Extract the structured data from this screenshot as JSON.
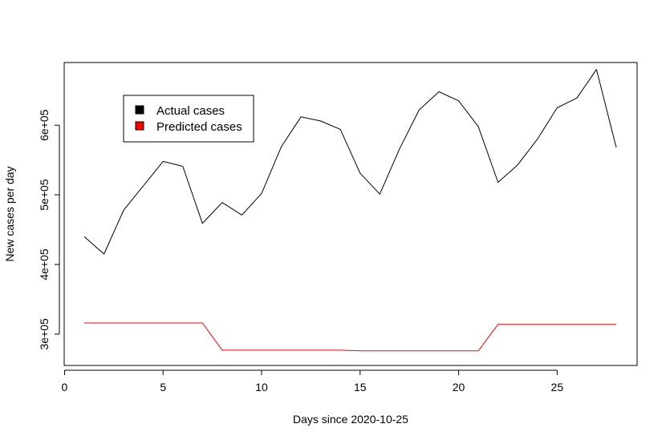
{
  "chart_data": {
    "type": "line",
    "title": "",
    "xlabel": "Days since 2020-10-25",
    "ylabel": "New cases per day",
    "xlim": [
      0,
      29
    ],
    "ylim": [
      255000,
      690000
    ],
    "x_ticks": [
      0,
      5,
      10,
      15,
      20,
      25
    ],
    "x_tick_labels": [
      "0",
      "5",
      "10",
      "15",
      "20",
      "25"
    ],
    "y_ticks": [
      300000,
      400000,
      500000,
      600000
    ],
    "y_tick_labels": [
      "3e+05",
      "4e+05",
      "5e+05",
      "6e+05"
    ],
    "grid": false,
    "legend_position": "top-left",
    "x": [
      1,
      2,
      3,
      4,
      5,
      6,
      7,
      8,
      9,
      10,
      11,
      12,
      13,
      14,
      15,
      16,
      17,
      18,
      19,
      20,
      21,
      22,
      23,
      24,
      25,
      26,
      27,
      28
    ],
    "series": [
      {
        "name": "Actual cases",
        "color": "#000000",
        "values": [
          440000,
          415000,
          478000,
          513000,
          548000,
          541000,
          459000,
          489000,
          471000,
          502000,
          569000,
          612000,
          606000,
          594000,
          531000,
          501000,
          566000,
          622000,
          648000,
          635000,
          598000,
          518000,
          543000,
          580000,
          625000,
          639000,
          680000,
          568000
        ]
      },
      {
        "name": "Predicted cases",
        "color": "#ff0000",
        "values": [
          316000,
          316000,
          316000,
          316000,
          316000,
          316000,
          316000,
          277000,
          277000,
          277000,
          277000,
          277000,
          277000,
          277000,
          276000,
          276000,
          276000,
          276000,
          276000,
          276000,
          276000,
          314000,
          314000,
          314000,
          314000,
          314000,
          314000,
          314000
        ]
      }
    ]
  }
}
